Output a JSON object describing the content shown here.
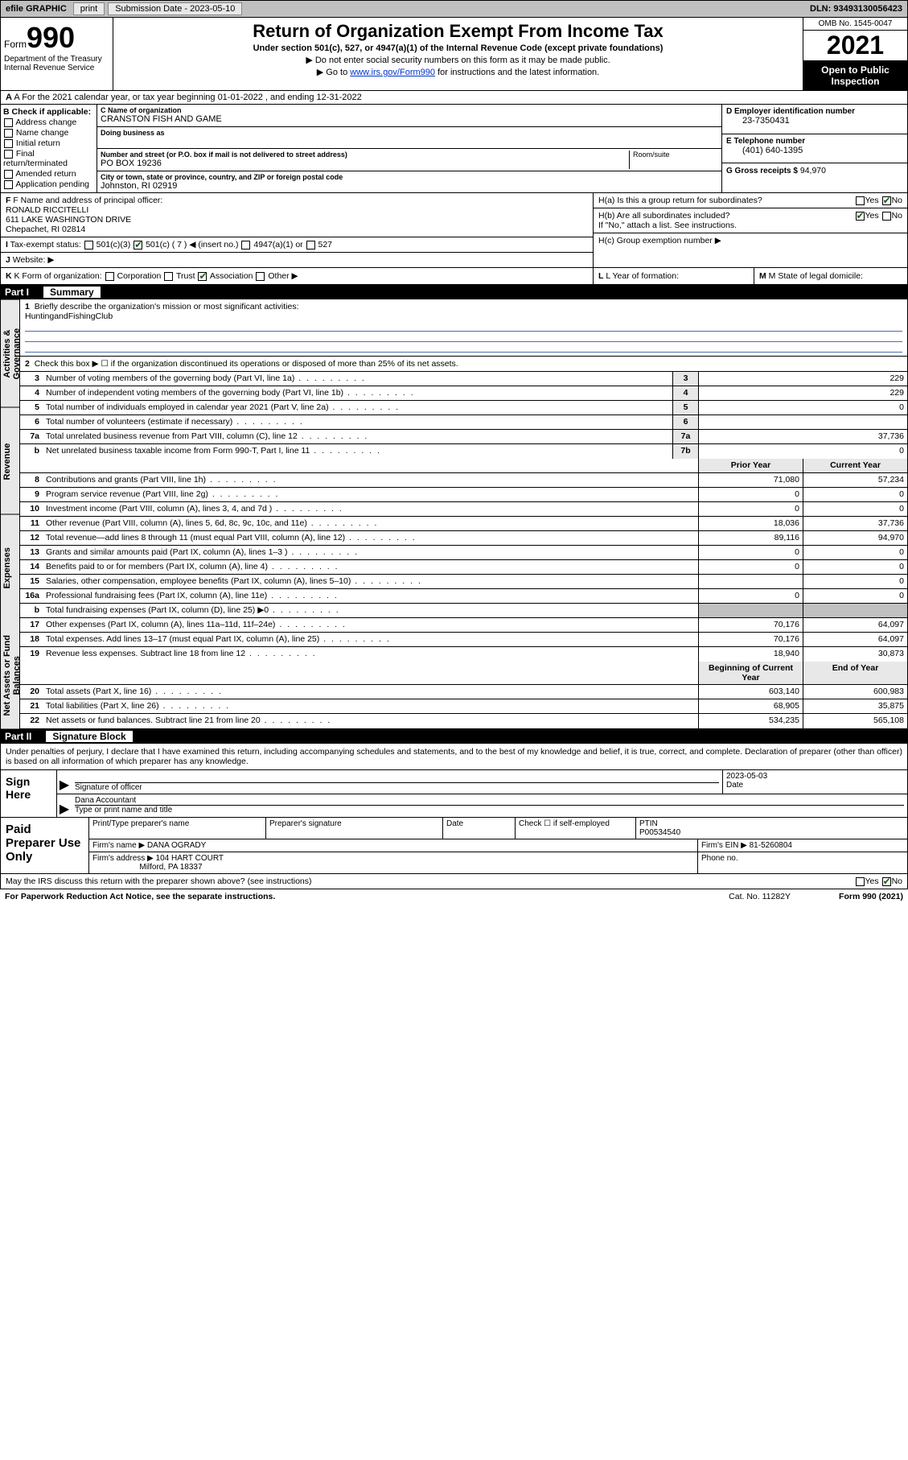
{
  "topbar": {
    "efile": "efile GRAPHIC",
    "print": "print",
    "sub_label": "Submission Date - 2023-05-10",
    "dln": "DLN: 93493130056423"
  },
  "header": {
    "formword": "Form",
    "formnum": "990",
    "dept": "Department of the Treasury",
    "irs": "Internal Revenue Service",
    "title": "Return of Organization Exempt From Income Tax",
    "subtitle": "Under section 501(c), 527, or 4947(a)(1) of the Internal Revenue Code (except private foundations)",
    "line1": "▶ Do not enter social security numbers on this form as it may be made public.",
    "line2_pre": "▶ Go to ",
    "line2_link": "www.irs.gov/Form990",
    "line2_post": " for instructions and the latest information.",
    "omb": "OMB No. 1545-0047",
    "year": "2021",
    "inspect": "Open to Public Inspection"
  },
  "row_a": "A For the 2021 calendar year, or tax year beginning 01-01-2022   , and ending 12-31-2022",
  "col_b": {
    "title": "B Check if applicable:",
    "items": [
      "Address change",
      "Name change",
      "Initial return",
      "Final return/terminated",
      "Amended return",
      "Application pending"
    ]
  },
  "col_c": {
    "name_lbl": "C Name of organization",
    "name": "CRANSTON FISH AND GAME",
    "dba_lbl": "Doing business as",
    "dba": "",
    "addr_lbl": "Number and street (or P.O. box if mail is not delivered to street address)",
    "room_lbl": "Room/suite",
    "addr": "PO BOX 19236",
    "city_lbl": "City or town, state or province, country, and ZIP or foreign postal code",
    "city": "Johnston, RI  02919"
  },
  "col_d": {
    "ein_lbl": "D Employer identification number",
    "ein": "23-7350431",
    "phone_lbl": "E Telephone number",
    "phone": "(401) 640-1395",
    "gross_lbl": "G Gross receipts $",
    "gross": "94,970"
  },
  "section_mid": {
    "f_lbl": "F Name and address of principal officer:",
    "f_name": "RONALD RICCITELLI",
    "f_addr1": "611 LAKE WASHINGTON DRIVE",
    "f_addr2": "Chepachet, RI  02814",
    "i_lbl": "Tax-exempt status:",
    "i_501c3": "501(c)(3)",
    "i_501c": "501(c) ( 7 ) ◀ (insert no.)",
    "i_4947": "4947(a)(1) or",
    "i_527": "527",
    "j_lbl": "Website: ▶",
    "ha_lbl": "H(a)  Is this a group return for subordinates?",
    "hb_lbl": "H(b)  Are all subordinates included?",
    "hb_note": "If \"No,\" attach a list. See instructions.",
    "hc_lbl": "H(c)  Group exemption number ▶",
    "yes": "Yes",
    "no": "No"
  },
  "row_k": {
    "k_lbl": "K Form of organization:",
    "corp": "Corporation",
    "trust": "Trust",
    "assoc": "Association",
    "other": "Other ▶",
    "l_lbl": "L Year of formation:",
    "m_lbl": "M State of legal domicile:"
  },
  "part1": {
    "header_num": "Part I",
    "header_title": "Summary",
    "vtabs": [
      "Activities & Governance",
      "Revenue",
      "Expenses",
      "Net Assets or Fund Balances"
    ],
    "line1": "Briefly describe the organization's mission or most significant activities:",
    "line1_val": "HuntingandFishingClub",
    "line2": "Check this box ▶ ☐  if the organization discontinued its operations or disposed of more than 25% of its net assets.",
    "rows_single": [
      {
        "n": "3",
        "d": "Number of voting members of the governing body (Part VI, line 1a)",
        "box": "3",
        "v": "229"
      },
      {
        "n": "4",
        "d": "Number of independent voting members of the governing body (Part VI, line 1b)",
        "box": "4",
        "v": "229"
      },
      {
        "n": "5",
        "d": "Total number of individuals employed in calendar year 2021 (Part V, line 2a)",
        "box": "5",
        "v": "0"
      },
      {
        "n": "6",
        "d": "Total number of volunteers (estimate if necessary)",
        "box": "6",
        "v": ""
      },
      {
        "n": "7a",
        "d": "Total unrelated business revenue from Part VIII, column (C), line 12",
        "box": "7a",
        "v": "37,736"
      },
      {
        "n": "b",
        "d": "Net unrelated business taxable income from Form 990-T, Part I, line 11",
        "box": "7b",
        "v": "0"
      }
    ],
    "dual_header": {
      "c1": "Prior Year",
      "c2": "Current Year"
    },
    "rows_dual": [
      {
        "n": "8",
        "d": "Contributions and grants (Part VIII, line 1h)",
        "v1": "71,080",
        "v2": "57,234"
      },
      {
        "n": "9",
        "d": "Program service revenue (Part VIII, line 2g)",
        "v1": "0",
        "v2": "0"
      },
      {
        "n": "10",
        "d": "Investment income (Part VIII, column (A), lines 3, 4, and 7d )",
        "v1": "0",
        "v2": "0"
      },
      {
        "n": "11",
        "d": "Other revenue (Part VIII, column (A), lines 5, 6d, 8c, 9c, 10c, and 11e)",
        "v1": "18,036",
        "v2": "37,736"
      },
      {
        "n": "12",
        "d": "Total revenue—add lines 8 through 11 (must equal Part VIII, column (A), line 12)",
        "v1": "89,116",
        "v2": "94,970"
      },
      {
        "n": "13",
        "d": "Grants and similar amounts paid (Part IX, column (A), lines 1–3 )",
        "v1": "0",
        "v2": "0"
      },
      {
        "n": "14",
        "d": "Benefits paid to or for members (Part IX, column (A), line 4)",
        "v1": "0",
        "v2": "0"
      },
      {
        "n": "15",
        "d": "Salaries, other compensation, employee benefits (Part IX, column (A), lines 5–10)",
        "v1": "",
        "v2": "0"
      },
      {
        "n": "16a",
        "d": "Professional fundraising fees (Part IX, column (A), line 11e)",
        "v1": "0",
        "v2": "0"
      },
      {
        "n": "b",
        "d": "Total fundraising expenses (Part IX, column (D), line 25) ▶0",
        "v1": "SHADE",
        "v2": "SHADE"
      },
      {
        "n": "17",
        "d": "Other expenses (Part IX, column (A), lines 11a–11d, 11f–24e)",
        "v1": "70,176",
        "v2": "64,097"
      },
      {
        "n": "18",
        "d": "Total expenses. Add lines 13–17 (must equal Part IX, column (A), line 25)",
        "v1": "70,176",
        "v2": "64,097"
      },
      {
        "n": "19",
        "d": "Revenue less expenses. Subtract line 18 from line 12",
        "v1": "18,940",
        "v2": "30,873"
      }
    ],
    "net_header": {
      "c1": "Beginning of Current Year",
      "c2": "End of Year"
    },
    "rows_net": [
      {
        "n": "20",
        "d": "Total assets (Part X, line 16)",
        "v1": "603,140",
        "v2": "600,983"
      },
      {
        "n": "21",
        "d": "Total liabilities (Part X, line 26)",
        "v1": "68,905",
        "v2": "35,875"
      },
      {
        "n": "22",
        "d": "Net assets or fund balances. Subtract line 21 from line 20",
        "v1": "534,235",
        "v2": "565,108"
      }
    ]
  },
  "part2": {
    "header_num": "Part II",
    "header_title": "Signature Block",
    "decl": "Under penalties of perjury, I declare that I have examined this return, including accompanying schedules and statements, and to the best of my knowledge and belief, it is true, correct, and complete. Declaration of preparer (other than officer) is based on all information of which preparer has any knowledge."
  },
  "sign": {
    "label": "Sign Here",
    "sig_lbl": "Signature of officer",
    "date_lbl": "Date",
    "date": "2023-05-03",
    "name": "Dana Accountant",
    "name_lbl": "Type or print name and title"
  },
  "prep": {
    "label": "Paid Preparer Use Only",
    "r1": {
      "c1": "Print/Type preparer's name",
      "c2": "Preparer's signature",
      "c3": "Date",
      "c4_pre": "Check ☐ if self-employed",
      "c5_lbl": "PTIN",
      "c5_val": "P00534540"
    },
    "r2": {
      "lbl": "Firm's name    ▶",
      "val": "DANA OGRADY",
      "ein_lbl": "Firm's EIN ▶",
      "ein": "81-5260804"
    },
    "r3": {
      "lbl": "Firm's address ▶",
      "val1": "104 HART COURT",
      "val2": "Milford, PA  18337",
      "phone_lbl": "Phone no."
    }
  },
  "footer": {
    "q": "May the IRS discuss this return with the preparer shown above? (see instructions)",
    "yes": "Yes",
    "no": "No",
    "paperwork": "For Paperwork Reduction Act Notice, see the separate instructions.",
    "cat": "Cat. No. 11282Y",
    "form": "Form 990 (2021)"
  }
}
